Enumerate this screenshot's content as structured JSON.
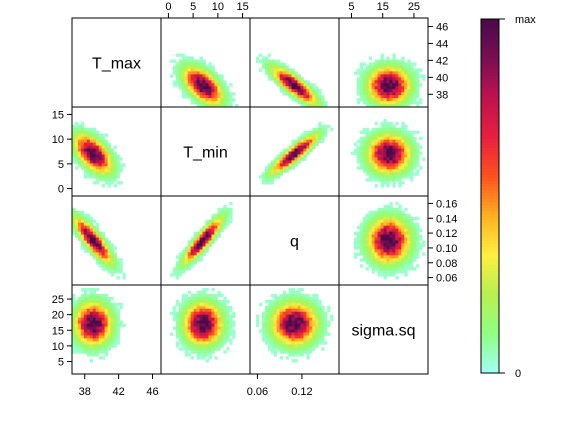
{
  "chart_data": {
    "type": "heatmap",
    "layout": "scatterplot-matrix",
    "variables": [
      "T_max",
      "T_min",
      "q",
      "sigma.sq"
    ],
    "variable_ranges": {
      "T_max": [
        36.5,
        47.0
      ],
      "T_min": [
        -1.5,
        16.5
      ],
      "q": [
        0.05,
        0.17
      ],
      "sigma.sq": [
        1.0,
        29.5
      ]
    },
    "axis_ticks": {
      "T_max": {
        "values": [
          38,
          42,
          46
        ],
        "labels": [
          "38",
          "42",
          "46"
        ],
        "side": "bottom"
      },
      "T_min": {
        "values": [
          0,
          5,
          10,
          15
        ],
        "labels": [
          "0",
          "5",
          "10",
          "15"
        ],
        "side": "top"
      },
      "q": {
        "values": [
          0.06,
          0.12
        ],
        "labels": [
          "0.06",
          "0.12"
        ],
        "side": "bottom"
      },
      "sigma.sq": {
        "values": [
          5,
          15,
          25
        ],
        "labels": [
          "5",
          "15",
          "25"
        ],
        "side": "top"
      }
    },
    "axis_ticks_y": {
      "T_max": {
        "values": [
          38,
          40,
          42,
          44,
          46
        ],
        "labels": [
          "38",
          "40",
          "42",
          "44",
          "46"
        ],
        "side": "right"
      },
      "T_min": {
        "values": [
          0,
          5,
          10,
          15
        ],
        "labels": [
          "0",
          "5",
          "10",
          "15"
        ],
        "side": "left"
      },
      "q": {
        "values": [
          0.06,
          0.08,
          0.1,
          0.12,
          0.14,
          0.16
        ],
        "labels": [
          "0.06",
          "0.08",
          "0.10",
          "0.12",
          "0.14",
          "0.16"
        ],
        "side": "right"
      },
      "sigma.sq": {
        "values": [
          5,
          10,
          15,
          20,
          25
        ],
        "labels": [
          "5",
          "10",
          "15",
          "20",
          "25"
        ],
        "side": "left"
      }
    },
    "joint_summary": {
      "means": {
        "T_max": 39.0,
        "T_min": 7.0,
        "q": 0.11,
        "sigma.sq": 17.0
      },
      "sds": {
        "T_max": 1.3,
        "T_min": 2.3,
        "q": 0.018,
        "sigma.sq": 4.0
      },
      "correlations": [
        {
          "pair": [
            "T_max",
            "T_min"
          ],
          "r": -0.55
        },
        {
          "pair": [
            "T_max",
            "q"
          ],
          "r": -0.85
        },
        {
          "pair": [
            "T_min",
            "q"
          ],
          "r": 0.9
        },
        {
          "pair": [
            "T_max",
            "sigma.sq"
          ],
          "r": 0.0
        },
        {
          "pair": [
            "T_min",
            "sigma.sq"
          ],
          "r": 0.0
        },
        {
          "pair": [
            "q",
            "sigma.sq"
          ],
          "r": 0.0
        }
      ]
    },
    "colorbar": {
      "top_label": "max",
      "bottom_label": "0",
      "colors": [
        "#A0FFF0",
        "#90FF80",
        "#B8F050",
        "#FFF040",
        "#FFB020",
        "#FF5020",
        "#E8203C",
        "#C0124E",
        "#7A0F52",
        "#4A0A4A"
      ]
    }
  }
}
